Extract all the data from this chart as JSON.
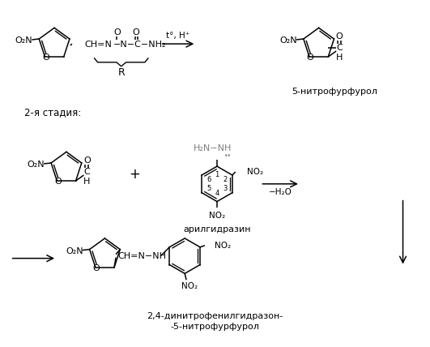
{
  "bg_color": "#ffffff",
  "text_color": "#000000",
  "gray_color": "#808080",
  "fig_width": 5.31,
  "fig_height": 4.28,
  "dpi": 100,
  "stage2_label": "2-я стадия:",
  "nitrofurfurol_label": "5-нитрофурфурол",
  "arylhydrazin_label": "арилгидразин",
  "product_label_1": "2,4-динитрофенилгидразон-",
  "product_label_2": "-5-нитрофурфурол",
  "condition1": "t°, H⁺",
  "condition2": "−H₂O"
}
